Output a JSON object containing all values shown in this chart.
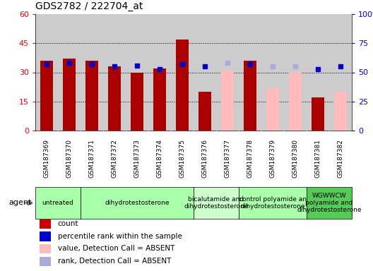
{
  "title": "GDS2782 / 222704_at",
  "samples": [
    "GSM187369",
    "GSM187370",
    "GSM187371",
    "GSM187372",
    "GSM187373",
    "GSM187374",
    "GSM187375",
    "GSM187376",
    "GSM187377",
    "GSM187378",
    "GSM187379",
    "GSM187380",
    "GSM187381",
    "GSM187382"
  ],
  "bar_values": [
    36,
    37,
    36,
    33,
    30,
    32,
    47,
    20,
    31,
    36,
    22,
    30,
    17,
    20
  ],
  "bar_absent": [
    false,
    false,
    false,
    false,
    false,
    false,
    false,
    false,
    true,
    false,
    true,
    true,
    false,
    true
  ],
  "dot_values": [
    57,
    58,
    57,
    55,
    56,
    53,
    57,
    55,
    58,
    57,
    55,
    55,
    53,
    55
  ],
  "dot_absent": [
    false,
    false,
    false,
    false,
    false,
    false,
    false,
    false,
    true,
    false,
    true,
    true,
    false,
    false
  ],
  "ylim_left": [
    0,
    60
  ],
  "ylim_right": [
    0,
    100
  ],
  "yticks_left": [
    0,
    15,
    30,
    45,
    60
  ],
  "ytick_labels_left": [
    "0",
    "15",
    "30",
    "45",
    "60"
  ],
  "yticks_right": [
    0,
    25,
    50,
    75,
    100
  ],
  "ytick_labels_right": [
    "0",
    "25",
    "50",
    "75",
    "100%"
  ],
  "agent_groups": [
    {
      "label": "untreated",
      "start": 0,
      "end": 1,
      "color": "#aaffaa"
    },
    {
      "label": "dihydrotestosterone",
      "start": 2,
      "end": 6,
      "color": "#aaffaa"
    },
    {
      "label": "bicalutamide and\ndihydrotestosterone",
      "start": 7,
      "end": 8,
      "color": "#ccffcc"
    },
    {
      "label": "control polyamide an\ndihydrotestosterone",
      "start": 9,
      "end": 11,
      "color": "#aaffaa"
    },
    {
      "label": "WGWWCW\npolyamide and\ndihydrotestosterone",
      "start": 12,
      "end": 13,
      "color": "#44cc44"
    }
  ],
  "bar_color_present": "#aa0000",
  "bar_color_absent": "#ffbbbb",
  "dot_color_present": "#0000cc",
  "dot_color_absent": "#aaaadd",
  "plot_bg": "#cccccc",
  "xtick_bg": "#cccccc",
  "legend_items": [
    {
      "color": "#cc0000",
      "label": "count"
    },
    {
      "color": "#0000cc",
      "label": "percentile rank within the sample"
    },
    {
      "color": "#ffbbbb",
      "label": "value, Detection Call = ABSENT"
    },
    {
      "color": "#aaaadd",
      "label": "rank, Detection Call = ABSENT"
    }
  ]
}
